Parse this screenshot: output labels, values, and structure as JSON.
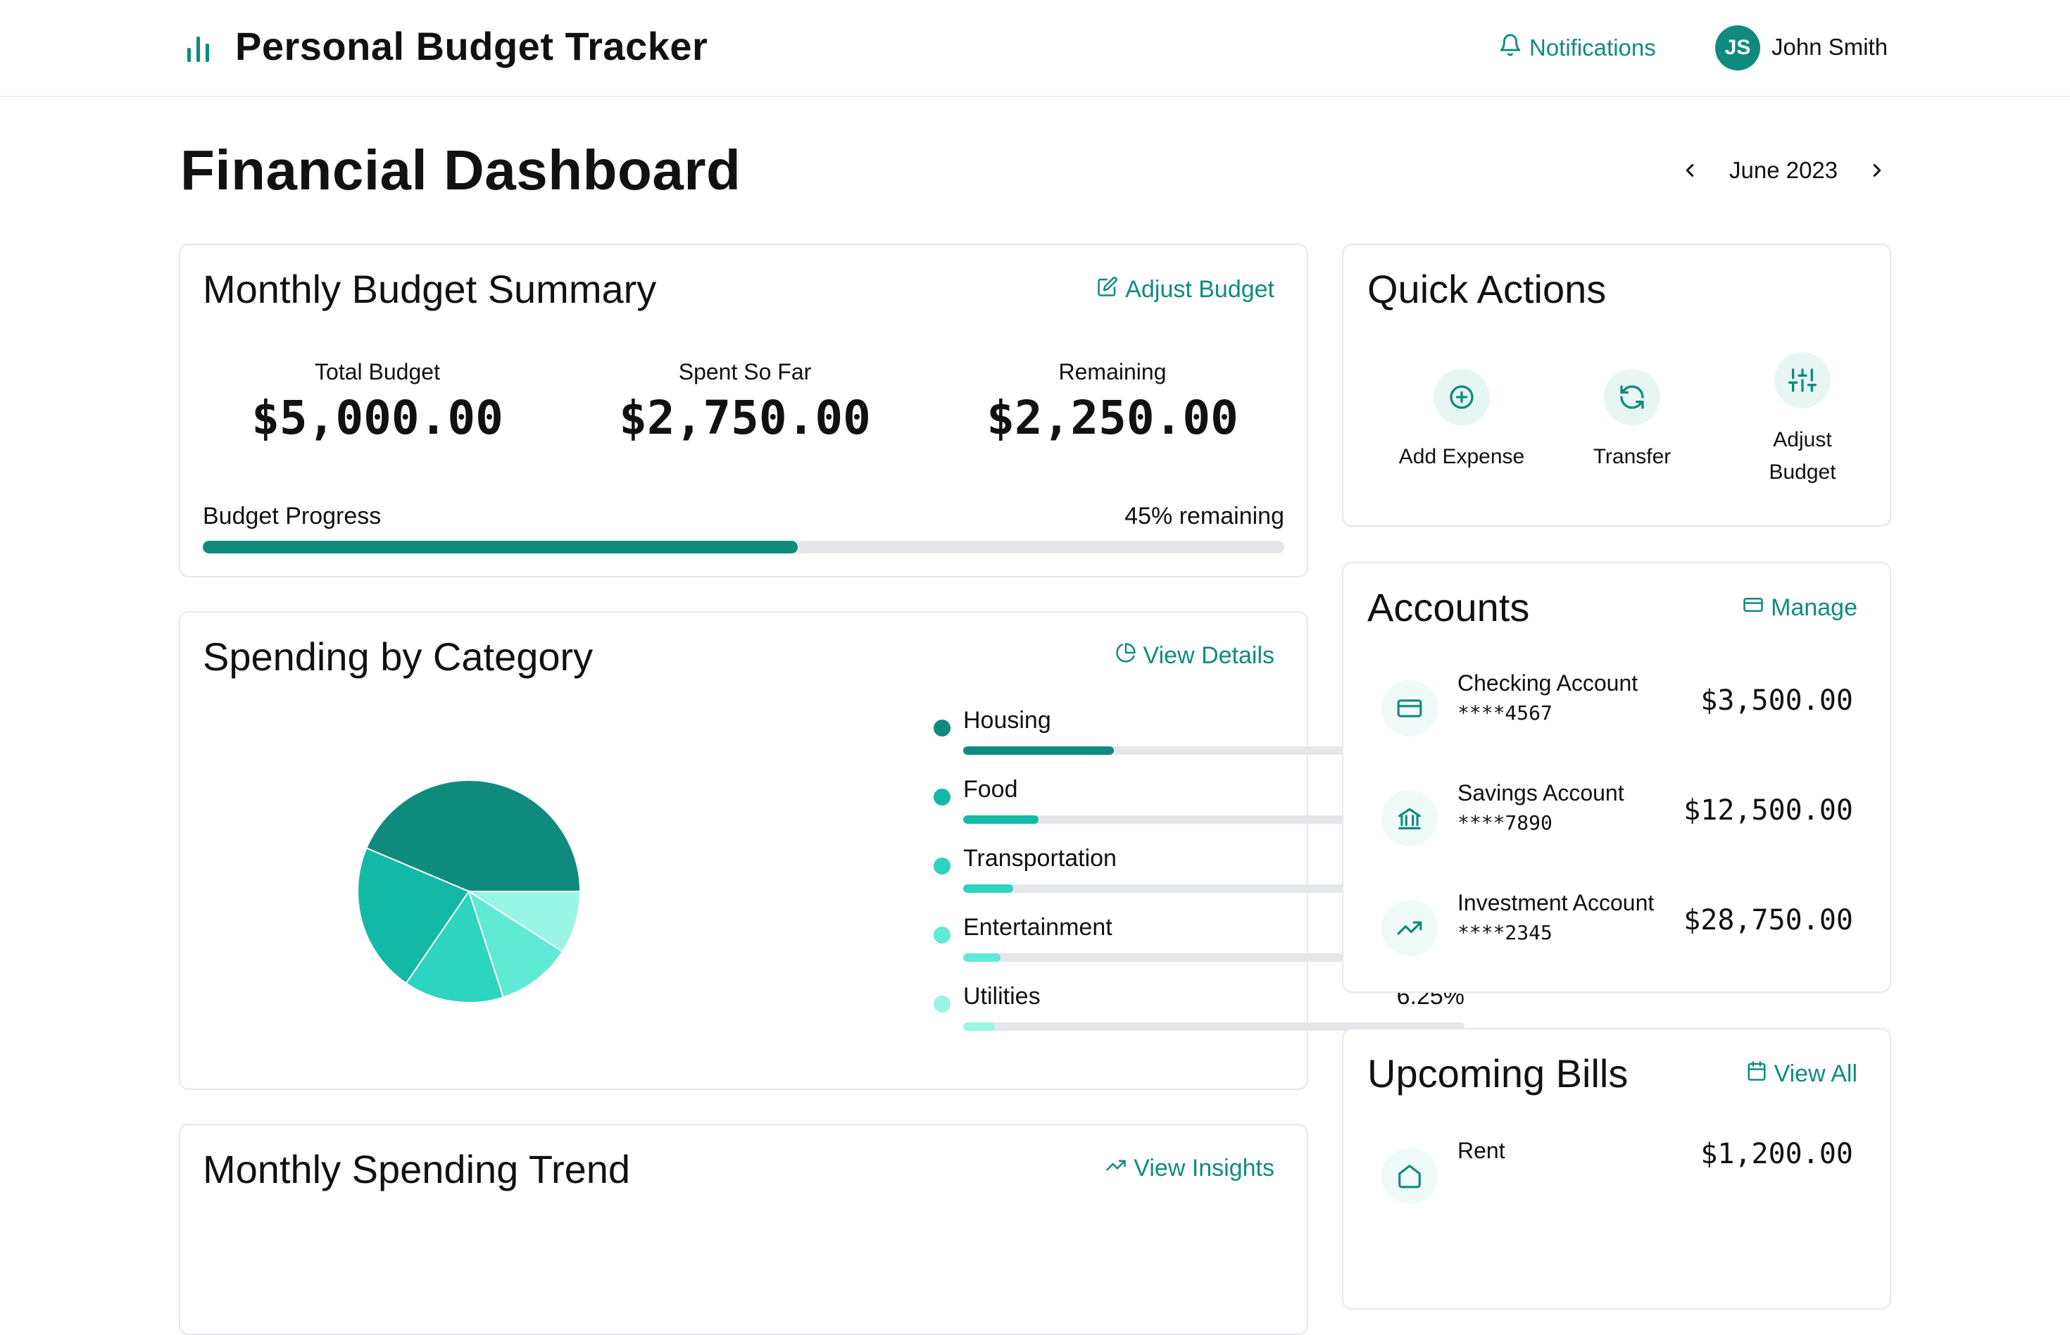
{
  "header": {
    "app_title": "Personal Budget Tracker",
    "notifications_label": "Notifications",
    "user_initials": "JS",
    "user_name": "John Smith"
  },
  "page": {
    "title": "Financial Dashboard",
    "period": "June 2023"
  },
  "budget_summary": {
    "title": "Monthly Budget Summary",
    "action_label": "Adjust Budget",
    "stats": [
      {
        "label": "Total Budget",
        "value": "$5,000.00"
      },
      {
        "label": "Spent So Far",
        "value": "$2,750.00"
      },
      {
        "label": "Remaining",
        "value": "$2,250.00"
      }
    ],
    "progress_label": "Budget Progress",
    "progress_text": "45% remaining",
    "spent_fraction": 0.55
  },
  "spending": {
    "title": "Spending by Category",
    "action_label": "View Details",
    "categories": [
      {
        "name": "Housing",
        "percent": "30%",
        "value": 30,
        "color": "#0f8b7d"
      },
      {
        "name": "Food",
        "percent": "15%",
        "value": 15,
        "color": "#14b8a6"
      },
      {
        "name": "Transportation",
        "percent": "10%",
        "value": 10,
        "color": "#2dd4bf"
      },
      {
        "name": "Entertainment",
        "percent": "7.5%",
        "value": 7.5,
        "color": "#5eead4"
      },
      {
        "name": "Utilities",
        "percent": "6.25%",
        "value": 6.25,
        "color": "#99f6e4"
      }
    ]
  },
  "trend": {
    "title": "Monthly Spending Trend",
    "action_label": "View Insights"
  },
  "quick_actions": {
    "title": "Quick Actions",
    "items": [
      {
        "label": "Add Expense",
        "icon": "plus-circle-icon"
      },
      {
        "label": "Transfer",
        "icon": "refresh-icon"
      },
      {
        "label": "Adjust Budget",
        "icon": "sliders-icon"
      }
    ]
  },
  "accounts": {
    "title": "Accounts",
    "action_label": "Manage",
    "items": [
      {
        "name": "Checking Account",
        "number": "****4567",
        "balance": "$3,500.00",
        "icon": "credit-card-icon"
      },
      {
        "name": "Savings Account",
        "number": "****7890",
        "balance": "$12,500.00",
        "icon": "bank-icon"
      },
      {
        "name": "Investment Account",
        "number": "****2345",
        "balance": "$28,750.00",
        "icon": "trending-up-icon"
      }
    ]
  },
  "bills": {
    "title": "Upcoming Bills",
    "action_label": "View All",
    "items": [
      {
        "name": "Rent",
        "amount": "$1,200.00",
        "icon": "home-icon"
      }
    ]
  },
  "colors": {
    "accent": "#0f8b7d",
    "track": "#e5e7eb",
    "icon_bg": "#e8f6f3"
  }
}
